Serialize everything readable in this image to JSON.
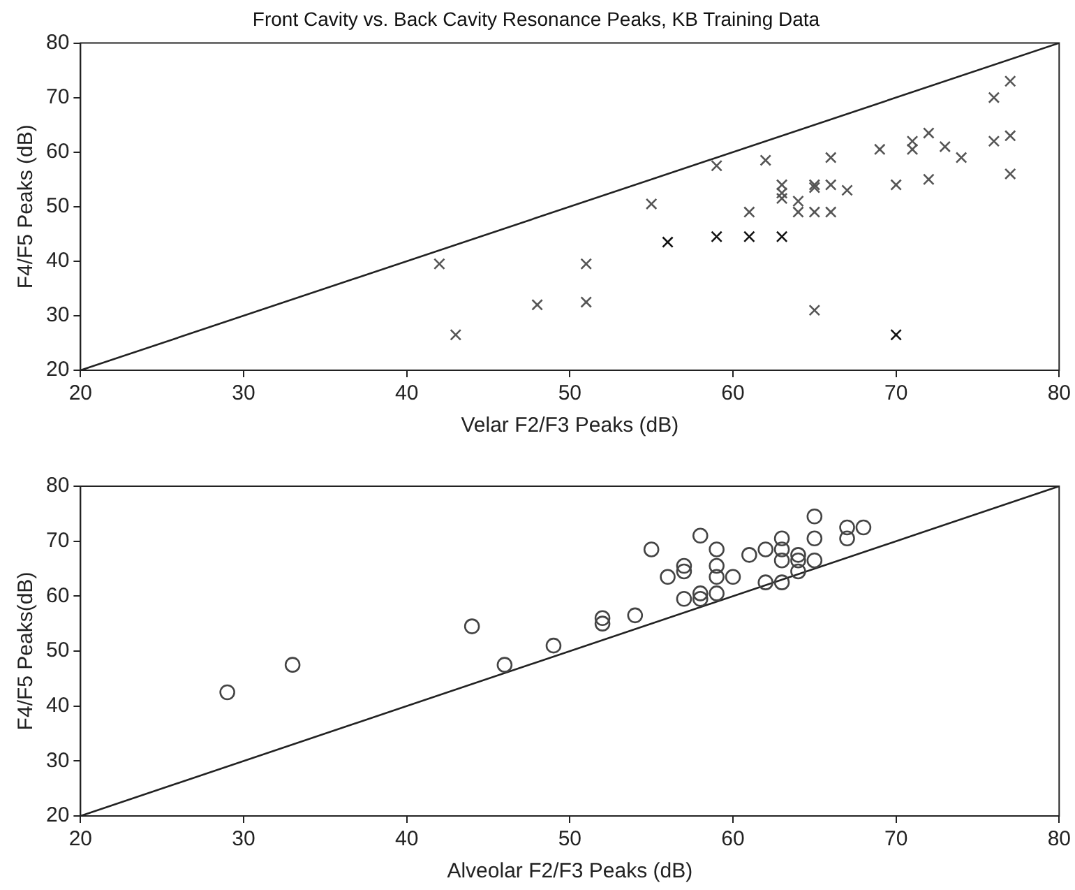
{
  "chart_data": [
    {
      "type": "scatter",
      "title": "Front Cavity vs. Back Cavity Resonance Peaks, KB Training Data",
      "xlabel": "Velar F2/F3 Peaks (dB)",
      "ylabel": "F4/F5 Peaks (dB)",
      "xlim": [
        20,
        80
      ],
      "xticks": [
        20,
        30,
        40,
        50,
        60,
        70,
        80
      ],
      "ylim": [
        20,
        80
      ],
      "yticks": [
        20,
        30,
        40,
        50,
        60,
        70,
        80
      ],
      "grid": false,
      "legend": false,
      "marker": "cross",
      "series": [
        {
          "color": "#555555",
          "x": [
            42,
            43,
            48,
            51,
            51,
            55,
            59,
            61,
            62,
            63,
            63,
            63,
            64,
            64,
            65,
            65,
            65,
            65,
            66,
            66,
            66,
            67,
            69,
            70,
            71,
            71,
            72,
            72,
            73,
            74,
            76,
            76,
            77,
            77,
            77
          ],
          "values": [
            39.5,
            26.5,
            32,
            39.5,
            32.5,
            50.5,
            57.5,
            49,
            58.5,
            54,
            52.5,
            51.5,
            51,
            49,
            54,
            53.5,
            49,
            31,
            54,
            59,
            49,
            53,
            60.5,
            54,
            62,
            60.5,
            63.5,
            55,
            61,
            59,
            70,
            62,
            73,
            63,
            56
          ]
        },
        {
          "color": "#111111",
          "x": [
            56,
            59,
            61,
            63,
            70
          ],
          "values": [
            43.5,
            44.5,
            44.5,
            44.5,
            26.5
          ]
        },
        {
          "type": "line",
          "color": "#222222",
          "marker": "none",
          "x": [
            20,
            80
          ],
          "values": [
            20,
            80
          ]
        }
      ]
    },
    {
      "type": "scatter",
      "xlabel": "Alveolar F2/F3 Peaks (dB)",
      "ylabel": "F4/F5 Peaks(dB)",
      "xlim": [
        20,
        80
      ],
      "xticks": [
        20,
        30,
        40,
        50,
        60,
        70,
        80
      ],
      "ylim": [
        20,
        80
      ],
      "yticks": [
        20,
        30,
        40,
        50,
        60,
        70,
        80
      ],
      "grid": false,
      "legend": false,
      "marker": "circle",
      "series": [
        {
          "color": "#444444",
          "x": [
            29,
            33,
            44,
            46,
            49,
            52,
            52,
            54,
            55,
            56,
            57,
            57,
            57,
            58,
            58,
            58,
            59,
            59,
            59,
            59,
            60,
            61,
            62,
            62,
            63,
            63,
            63,
            63,
            64,
            64,
            64,
            65,
            65,
            65,
            67,
            67,
            68
          ],
          "values": [
            42.5,
            47.5,
            54.5,
            47.5,
            51,
            56,
            55,
            56.5,
            68.5,
            63.5,
            65.5,
            64.5,
            59.5,
            71,
            60.5,
            59.5,
            68.5,
            65.5,
            63.5,
            60.5,
            63.5,
            67.5,
            68.5,
            62.5,
            70.5,
            68.5,
            66.5,
            62.5,
            67.5,
            66.5,
            64.5,
            74.5,
            70.5,
            66.5,
            72.5,
            70.5,
            72.5
          ]
        },
        {
          "type": "line",
          "color": "#222222",
          "marker": "none",
          "x": [
            20,
            80
          ],
          "values": [
            20,
            80
          ]
        }
      ]
    }
  ]
}
